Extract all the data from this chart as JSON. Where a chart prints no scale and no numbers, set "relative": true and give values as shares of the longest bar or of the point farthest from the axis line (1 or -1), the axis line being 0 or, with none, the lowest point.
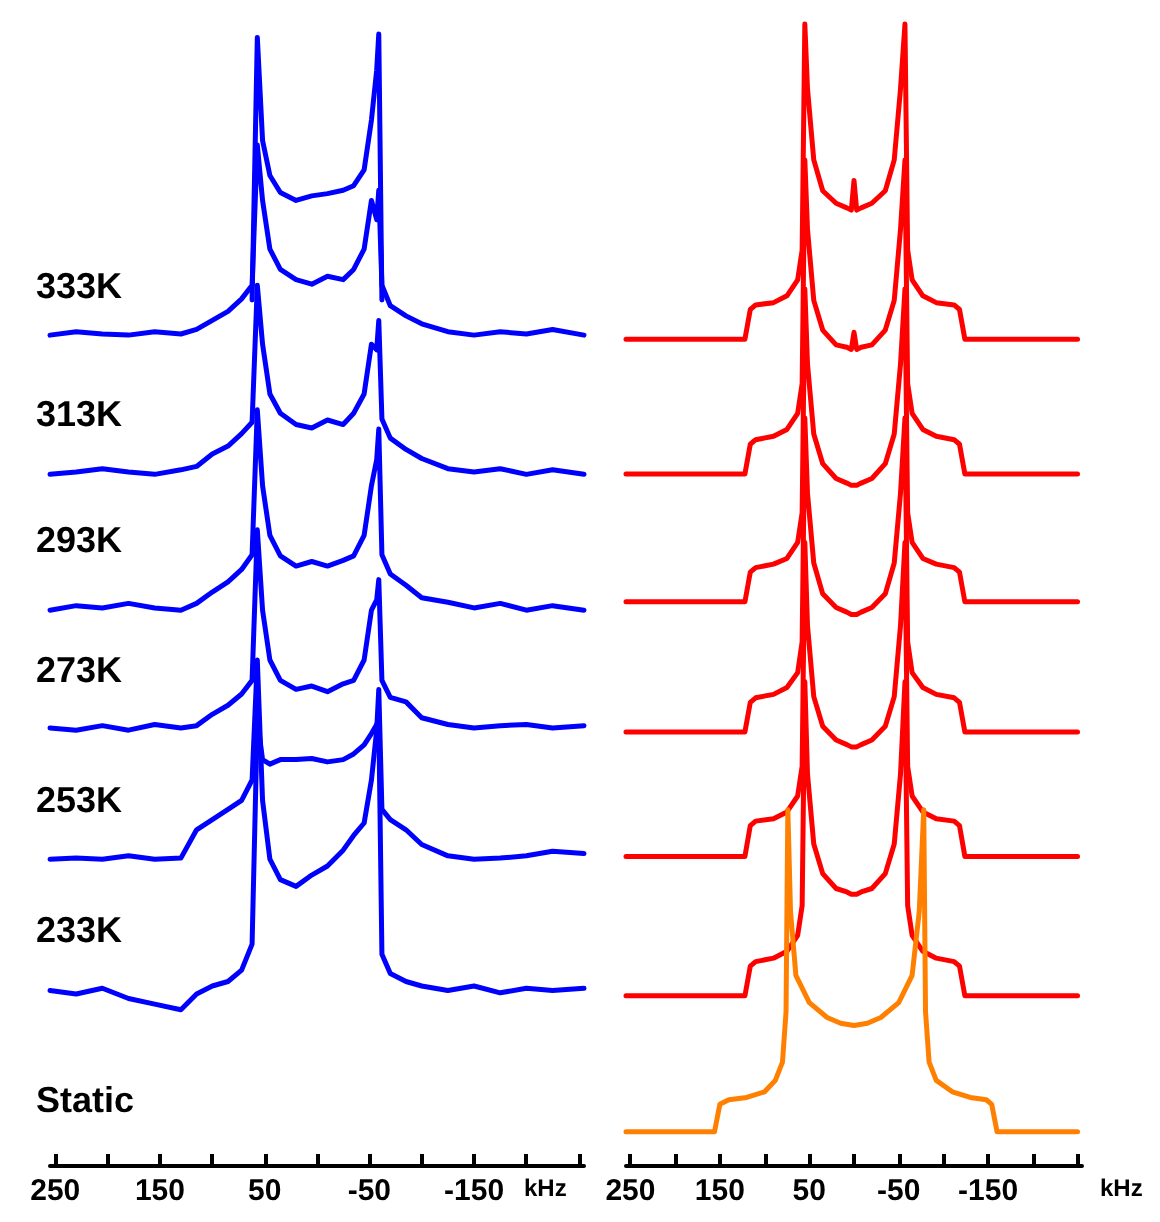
{
  "chart_data": [
    {
      "type": "line",
      "relative": true,
      "xlabel": "kHz",
      "xlim": [
        255,
        -255
      ],
      "xticks": [
        250,
        {
          "value": 200,
          "label": null
        },
        150,
        {
          "value": 100,
          "label": null
        },
        50,
        {
          "value": 0,
          "label": null
        },
        -50,
        {
          "value": -100,
          "label": null
        },
        -150,
        {
          "value": -200,
          "label": null
        },
        {
          "value": -250,
          "label": null
        }
      ],
      "grid": false,
      "marker": "none",
      "line_style": "solid",
      "x": [
        255,
        230,
        205,
        180,
        155,
        130,
        115,
        100,
        85,
        72,
        62,
        57,
        52,
        45,
        35,
        20,
        5,
        -10,
        -25,
        -35,
        -45,
        -52,
        -57,
        -59,
        -62,
        -70,
        -85,
        -100,
        -125,
        -150,
        -175,
        -200,
        -225,
        -255
      ],
      "series": [
        {
          "color": "#0000ff",
          "x": [
            62,
            57,
            52,
            45,
            35,
            20,
            5,
            -10,
            -25,
            -35,
            -45,
            -52,
            -57,
            -59,
            -62
          ],
          "values": [
            0.765,
            0.997,
            0.906,
            0.875,
            0.86,
            0.853,
            0.857,
            0.859,
            0.862,
            0.866,
            0.88,
            0.924,
            0.968,
            1.0,
            0.765
          ]
        },
        {
          "color": "#0000ff",
          "values": [
            0.734,
            0.737,
            0.735,
            0.734,
            0.737,
            0.735,
            0.739,
            0.747,
            0.755,
            0.766,
            0.778,
            0.902,
            0.853,
            0.81,
            0.792,
            0.783,
            0.779,
            0.786,
            0.783,
            0.792,
            0.81,
            0.853,
            0.836,
            0.862,
            0.778,
            0.76,
            0.751,
            0.744,
            0.737,
            0.734,
            0.737,
            0.735,
            0.739,
            0.734
          ]
        },
        {
          "color": "#0000ff",
          "values": [
            0.611,
            0.613,
            0.616,
            0.613,
            0.611,
            0.615,
            0.618,
            0.629,
            0.636,
            0.647,
            0.657,
            0.778,
            0.726,
            0.682,
            0.665,
            0.655,
            0.652,
            0.659,
            0.655,
            0.665,
            0.682,
            0.726,
            0.721,
            0.747,
            0.66,
            0.643,
            0.633,
            0.625,
            0.616,
            0.613,
            0.616,
            0.611,
            0.615,
            0.611
          ]
        },
        {
          "color": "#0000ff",
          "values": [
            0.491,
            0.495,
            0.493,
            0.497,
            0.493,
            0.491,
            0.497,
            0.507,
            0.516,
            0.527,
            0.54,
            0.668,
            0.601,
            0.557,
            0.539,
            0.53,
            0.534,
            0.53,
            0.535,
            0.539,
            0.557,
            0.601,
            0.624,
            0.651,
            0.54,
            0.523,
            0.513,
            0.502,
            0.498,
            0.493,
            0.497,
            0.491,
            0.495,
            0.491
          ]
        },
        {
          "color": "#0000ff",
          "values": [
            0.387,
            0.385,
            0.389,
            0.385,
            0.39,
            0.387,
            0.389,
            0.399,
            0.407,
            0.417,
            0.429,
            0.562,
            0.491,
            0.447,
            0.429,
            0.421,
            0.424,
            0.419,
            0.426,
            0.429,
            0.447,
            0.491,
            0.5,
            0.518,
            0.429,
            0.414,
            0.41,
            0.396,
            0.39,
            0.387,
            0.389,
            0.39,
            0.387,
            0.389
          ]
        },
        {
          "color": "#0000ff",
          "values": [
            0.271,
            0.272,
            0.271,
            0.274,
            0.271,
            0.272,
            0.297,
            0.306,
            0.315,
            0.323,
            0.341,
            0.447,
            0.323,
            0.271,
            0.253,
            0.247,
            0.257,
            0.265,
            0.279,
            0.292,
            0.303,
            0.341,
            0.385,
            0.421,
            0.315,
            0.306,
            0.297,
            0.284,
            0.274,
            0.271,
            0.272,
            0.274,
            0.278,
            0.276
          ]
        },
        {
          "color": "#0000ff",
          "values": [
            0.155,
            0.152,
            0.157,
            0.148,
            0.143,
            0.138,
            0.152,
            0.159,
            0.163,
            0.173,
            0.196,
            0.394,
            0.359,
            0.355,
            0.359,
            0.359,
            0.36,
            0.357,
            0.359,
            0.364,
            0.372,
            0.382,
            0.39,
            0.394,
            0.187,
            0.17,
            0.163,
            0.159,
            0.155,
            0.159,
            0.153,
            0.157,
            0.155,
            0.157
          ]
        }
      ],
      "annotations": [
        "333K",
        "313K",
        "293K",
        "273K",
        "253K",
        "233K",
        "Static"
      ]
    },
    {
      "type": "line",
      "relative": true,
      "xlabel": "kHz",
      "xlim": [
        255,
        -255
      ],
      "xticks": [
        250,
        {
          "value": 200,
          "label": null
        },
        150,
        {
          "value": 100,
          "label": null
        },
        50,
        {
          "value": 0,
          "label": null
        },
        -50,
        {
          "value": -100,
          "label": null
        },
        -150,
        {
          "value": -200,
          "label": null
        },
        {
          "value": -250,
          "label": null
        }
      ],
      "grid": false,
      "marker": "none",
      "line_style": "solid",
      "x": [
        255,
        160,
        122,
        116,
        110,
        90,
        75,
        63,
        58,
        55,
        52,
        45,
        35,
        20,
        8,
        3,
        0,
        -3,
        -8,
        -20,
        -35,
        -45,
        -52,
        -57,
        -60,
        -65,
        -77,
        -92,
        -112,
        -118,
        -124,
        -160,
        -250
      ],
      "series": [
        {
          "color": "#ff0000",
          "values": [
            0.724,
            0.724,
            0.724,
            0.75,
            0.754,
            0.756,
            0.762,
            0.776,
            0.802,
            1.0,
            0.943,
            0.881,
            0.854,
            0.843,
            0.839,
            0.837,
            0.863,
            0.837,
            0.839,
            0.843,
            0.854,
            0.881,
            0.943,
            1.0,
            0.802,
            0.776,
            0.762,
            0.756,
            0.754,
            0.75,
            0.724,
            0.724,
            0.724
          ]
        },
        {
          "color": "#ff0000",
          "values": [
            0.606,
            0.606,
            0.606,
            0.632,
            0.636,
            0.639,
            0.645,
            0.659,
            0.685,
            0.881,
            0.82,
            0.758,
            0.732,
            0.719,
            0.717,
            0.715,
            0.73,
            0.715,
            0.717,
            0.719,
            0.732,
            0.758,
            0.82,
            0.881,
            0.685,
            0.659,
            0.645,
            0.639,
            0.636,
            0.632,
            0.606,
            0.606,
            0.606
          ]
        },
        {
          "color": "#ff0000",
          "values": [
            0.494,
            0.494,
            0.494,
            0.52,
            0.524,
            0.527,
            0.532,
            0.546,
            0.572,
            0.768,
            0.702,
            0.641,
            0.615,
            0.602,
            0.598,
            0.596,
            0.596,
            0.596,
            0.598,
            0.602,
            0.615,
            0.641,
            0.702,
            0.768,
            0.572,
            0.546,
            0.532,
            0.527,
            0.524,
            0.52,
            0.494,
            0.494,
            0.494
          ]
        },
        {
          "color": "#ff0000",
          "values": [
            0.38,
            0.38,
            0.38,
            0.406,
            0.41,
            0.413,
            0.419,
            0.432,
            0.459,
            0.655,
            0.589,
            0.528,
            0.501,
            0.489,
            0.485,
            0.483,
            0.483,
            0.483,
            0.485,
            0.489,
            0.501,
            0.528,
            0.589,
            0.655,
            0.459,
            0.432,
            0.419,
            0.413,
            0.41,
            0.406,
            0.38,
            0.38,
            0.38
          ]
        },
        {
          "color": "#ff0000",
          "values": [
            0.271,
            0.271,
            0.271,
            0.298,
            0.302,
            0.304,
            0.31,
            0.324,
            0.35,
            0.546,
            0.473,
            0.411,
            0.385,
            0.373,
            0.369,
            0.367,
            0.367,
            0.367,
            0.369,
            0.373,
            0.385,
            0.411,
            0.473,
            0.546,
            0.35,
            0.324,
            0.31,
            0.304,
            0.302,
            0.298,
            0.271,
            0.271,
            0.271
          ]
        },
        {
          "color": "#ff0000",
          "values": [
            0.149,
            0.149,
            0.149,
            0.175,
            0.179,
            0.182,
            0.188,
            0.202,
            0.228,
            0.424,
            0.343,
            0.282,
            0.256,
            0.243,
            0.24,
            0.238,
            0.238,
            0.238,
            0.24,
            0.243,
            0.256,
            0.282,
            0.343,
            0.424,
            0.228,
            0.202,
            0.188,
            0.182,
            0.179,
            0.175,
            0.149,
            0.149,
            0.149
          ]
        },
        {
          "color": "#ff8000",
          "x": [
            255,
            200,
            156,
            150,
            140,
            120,
            100,
            88,
            80,
            76,
            74,
            71,
            65,
            50,
            30,
            15,
            0,
            -15,
            -30,
            -50,
            -65,
            -73,
            -78,
            -80,
            -84,
            -92,
            -110,
            -130,
            -148,
            -154,
            -160,
            -200,
            -250
          ],
          "values": [
            0.03,
            0.03,
            0.03,
            0.054,
            0.058,
            0.06,
            0.065,
            0.075,
            0.091,
            0.135,
            0.312,
            0.223,
            0.167,
            0.143,
            0.13,
            0.125,
            0.123,
            0.125,
            0.13,
            0.143,
            0.167,
            0.223,
            0.312,
            0.135,
            0.091,
            0.075,
            0.065,
            0.06,
            0.058,
            0.054,
            0.03,
            0.03,
            0.03
          ]
        }
      ]
    }
  ]
}
